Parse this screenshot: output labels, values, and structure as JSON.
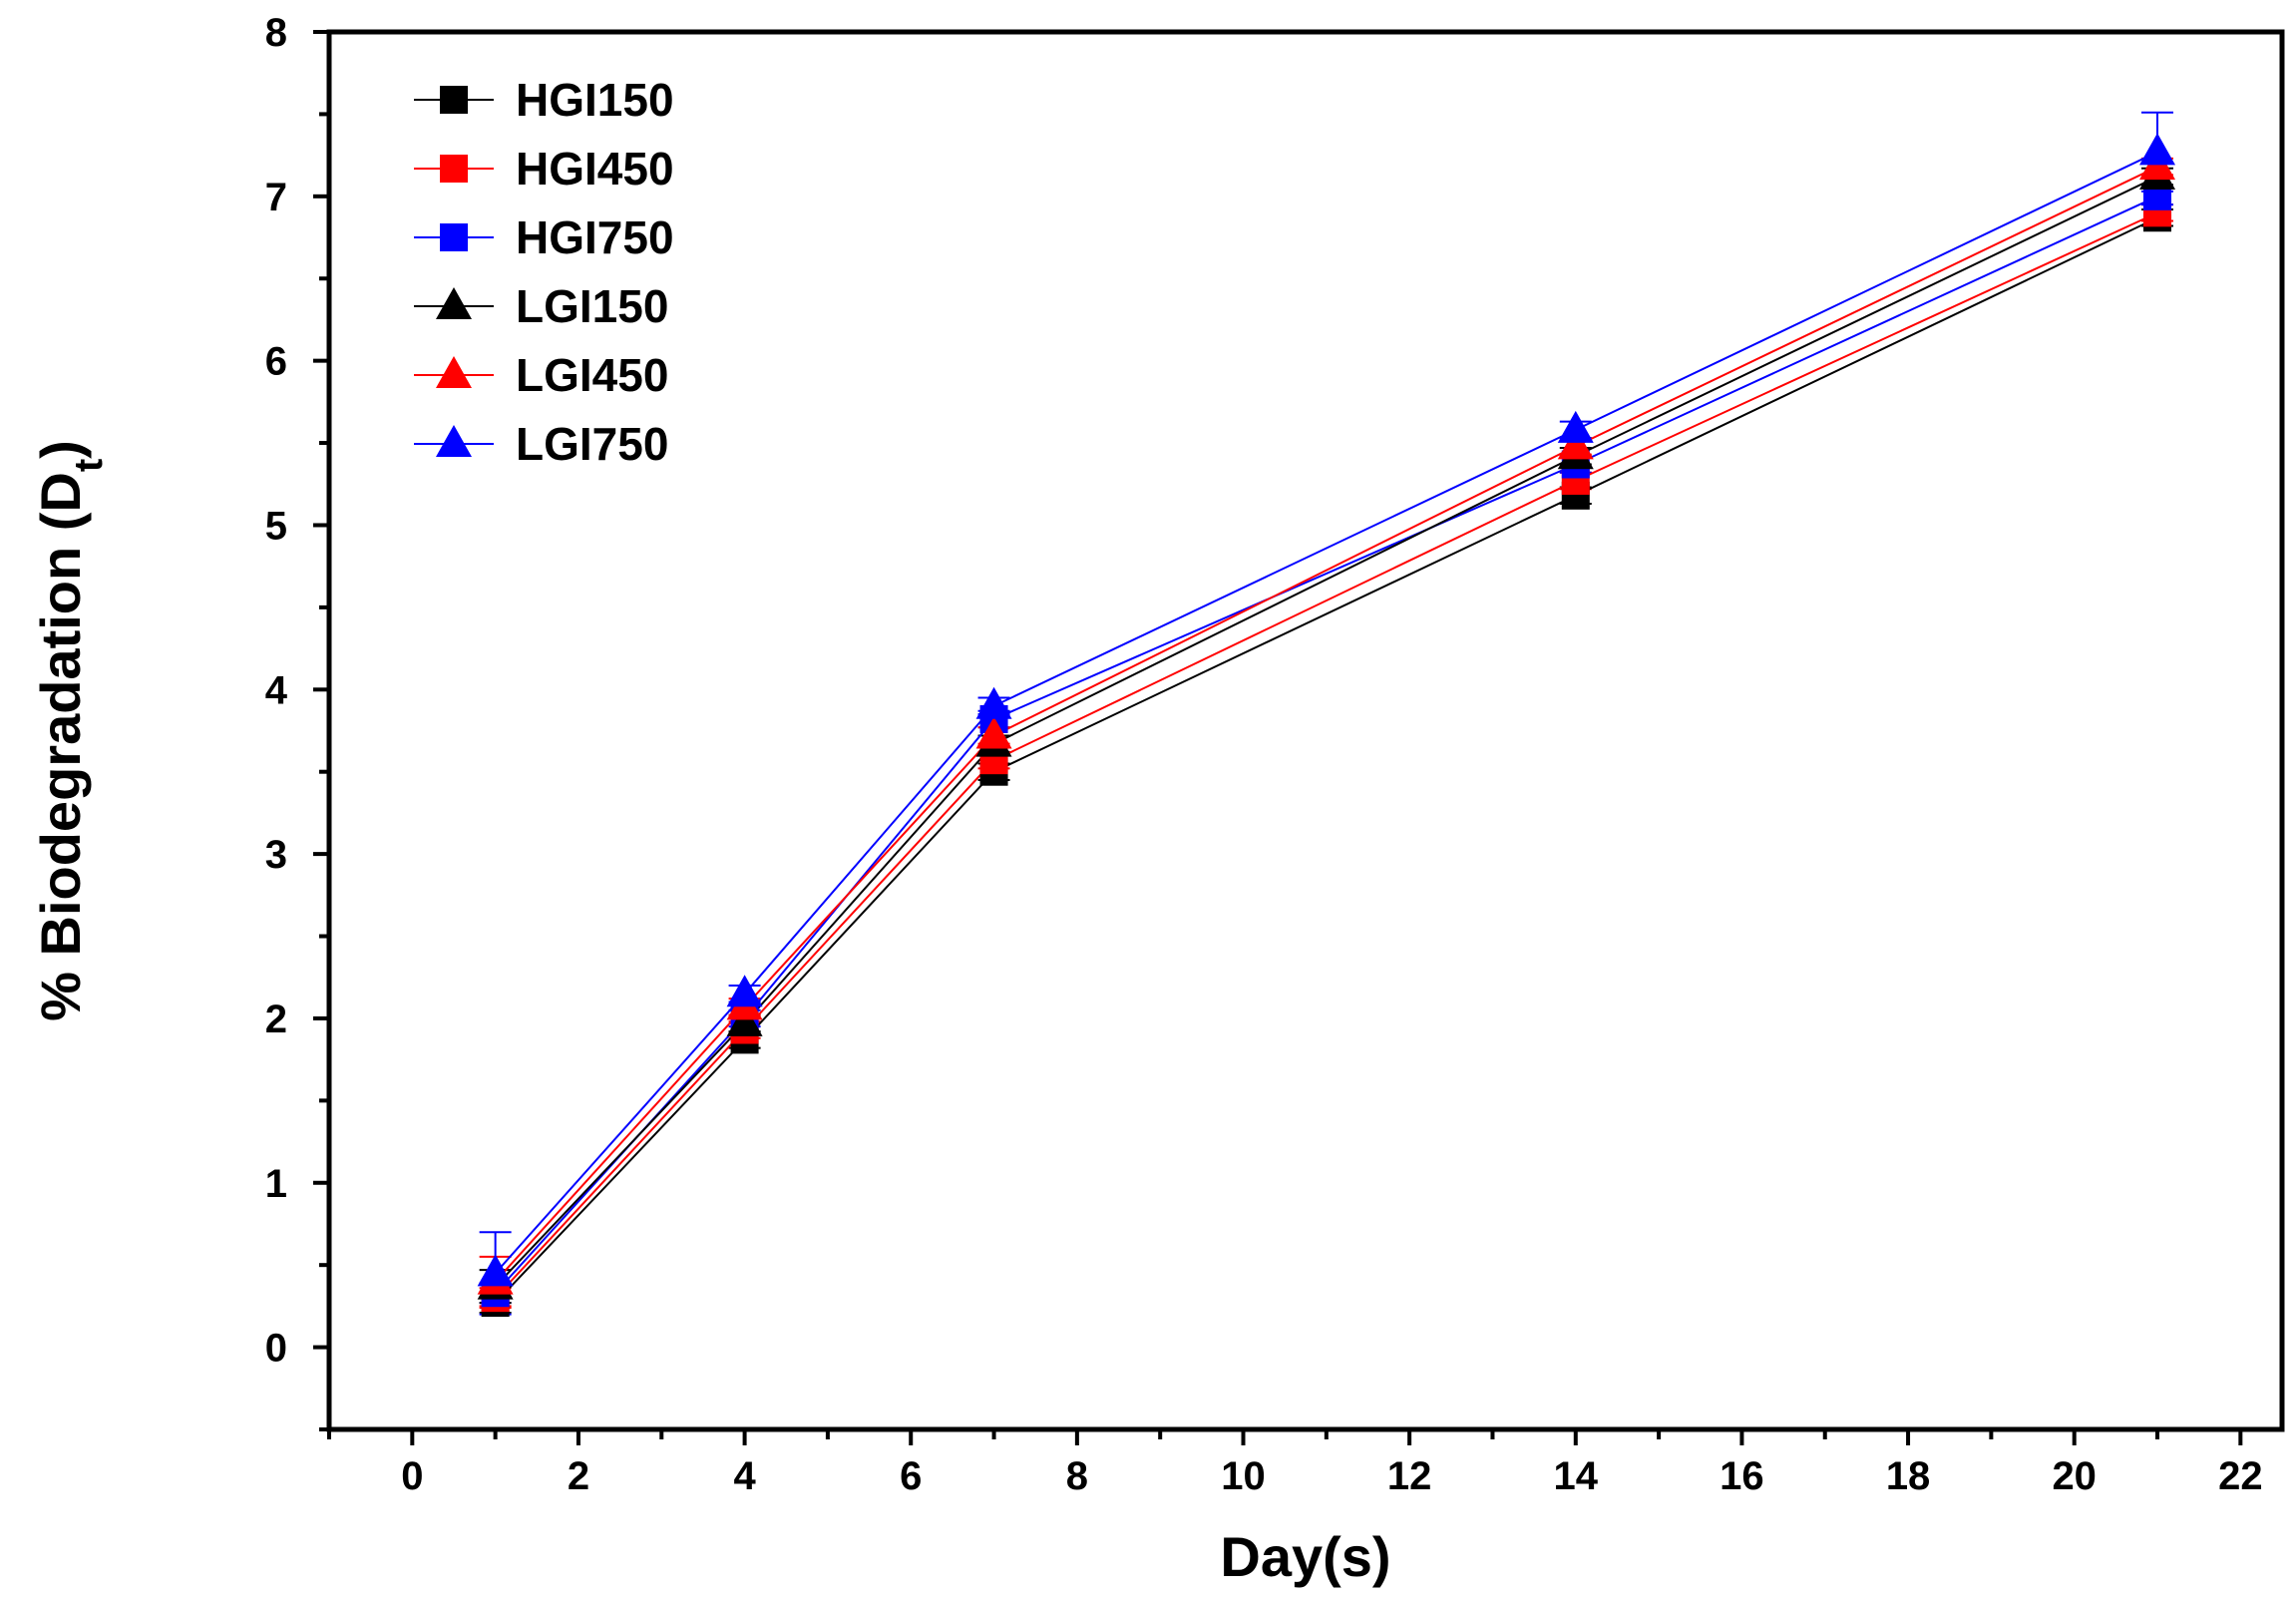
{
  "chart_data": {
    "type": "line",
    "title": "",
    "xlabel": "Day(s)",
    "ylabel_main": "% Biodegradation (D",
    "ylabel_sub": "t",
    "ylabel_close": ")",
    "xlim": [
      -1,
      22.5
    ],
    "ylim": [
      -0.5,
      8
    ],
    "xticks": [
      0,
      2,
      4,
      6,
      8,
      10,
      12,
      14,
      16,
      18,
      20,
      22
    ],
    "yticks": [
      0,
      1,
      2,
      3,
      4,
      5,
      6,
      7,
      8
    ],
    "grid": false,
    "legend_position": "top-left",
    "x": [
      1,
      4,
      7,
      14,
      21
    ],
    "series": [
      {
        "name": "HGI150",
        "marker": "square",
        "color": "#000000",
        "values": [
          0.27,
          1.87,
          3.5,
          5.18,
          6.87
        ],
        "errors": [
          0.06,
          0.05,
          0.05,
          0.05,
          0.05
        ]
      },
      {
        "name": "HGI450",
        "marker": "square",
        "color": "#ff0000",
        "values": [
          0.3,
          1.93,
          3.57,
          5.27,
          6.9
        ],
        "errors": [
          0.06,
          0.05,
          0.05,
          0.05,
          0.05
        ]
      },
      {
        "name": "HGI750",
        "marker": "square",
        "color": "#0000ff",
        "values": [
          0.33,
          2.0,
          3.82,
          5.37,
          7.0
        ],
        "errors": [
          0.06,
          0.05,
          0.05,
          0.05,
          0.05
        ]
      },
      {
        "name": "LGI150",
        "marker": "triangle",
        "color": "#000000",
        "values": [
          0.37,
          1.97,
          3.67,
          5.42,
          7.12
        ],
        "errors": [
          0.1,
          0.05,
          0.05,
          0.05,
          0.05
        ]
      },
      {
        "name": "LGI450",
        "marker": "triangle",
        "color": "#ff0000",
        "values": [
          0.4,
          2.07,
          3.72,
          5.48,
          7.18
        ],
        "errors": [
          0.15,
          0.05,
          0.05,
          0.05,
          0.05
        ]
      },
      {
        "name": "LGI750",
        "marker": "triangle",
        "color": "#0000ff",
        "values": [
          0.45,
          2.15,
          3.9,
          5.58,
          7.27
        ],
        "errors": [
          0.25,
          0.05,
          0.05,
          0.05,
          0.24
        ]
      }
    ]
  }
}
